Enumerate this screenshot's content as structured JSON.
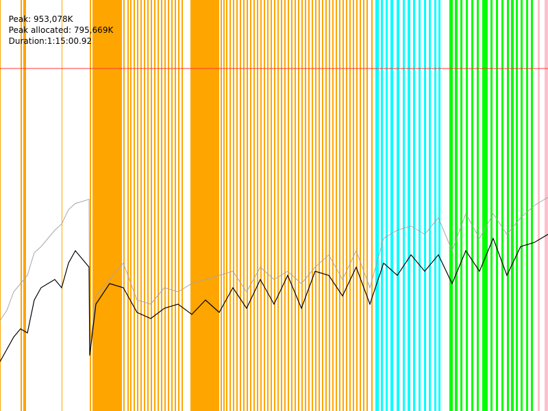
{
  "header": {
    "peak": "Peak: 953,078K",
    "peak_allocated": "Peak allocated: 795,669K",
    "duration": "Duration:1:15:00.92"
  },
  "chart_data": {
    "type": "line",
    "title": "",
    "xlabel": "",
    "ylabel": "",
    "colors": {
      "peak_line": "#ff3333",
      "total_memory": "#a6a6a6",
      "allocated_memory": "#000000",
      "phase_orange": "#ffa500",
      "phase_cyan": "#00ffff",
      "phase_green": "#00ff00",
      "phase_pink": "#ffc0cb"
    },
    "ylim": [
      0,
      1000
    ],
    "peak_reference_level": 953078,
    "phases": [
      {
        "color": "orange",
        "ranges": [
          [
            0,
            1
          ],
          [
            30,
            32
          ],
          [
            34,
            38
          ],
          [
            90,
            91
          ],
          [
            131,
            133
          ],
          [
            135,
            178
          ],
          [
            180,
            182
          ],
          [
            186,
            188
          ],
          [
            190,
            192
          ],
          [
            195,
            197
          ],
          [
            200,
            202
          ],
          [
            205,
            207
          ],
          [
            210,
            212
          ],
          [
            215,
            217
          ],
          [
            220,
            222
          ],
          [
            225,
            227
          ],
          [
            230,
            232
          ],
          [
            235,
            237
          ],
          [
            240,
            242
          ],
          [
            245,
            247
          ],
          [
            250,
            252
          ],
          [
            255,
            257
          ],
          [
            260,
            262
          ],
          [
            265,
            267
          ],
          [
            278,
            320
          ],
          [
            322,
            324
          ],
          [
            326,
            328
          ],
          [
            330,
            332
          ],
          [
            335,
            337
          ],
          [
            340,
            342
          ],
          [
            345,
            347
          ],
          [
            350,
            352
          ],
          [
            355,
            357
          ],
          [
            360,
            362
          ],
          [
            365,
            367
          ],
          [
            370,
            372
          ],
          [
            375,
            377
          ],
          [
            380,
            382
          ],
          [
            385,
            387
          ],
          [
            390,
            392
          ],
          [
            395,
            397
          ],
          [
            400,
            402
          ],
          [
            405,
            407
          ],
          [
            410,
            412
          ],
          [
            415,
            417
          ],
          [
            420,
            422
          ],
          [
            425,
            427
          ],
          [
            430,
            432
          ],
          [
            435,
            437
          ],
          [
            440,
            442
          ],
          [
            445,
            447
          ],
          [
            450,
            452
          ],
          [
            455,
            457
          ],
          [
            460,
            462
          ],
          [
            465,
            467
          ],
          [
            470,
            472
          ],
          [
            475,
            477
          ],
          [
            480,
            482
          ],
          [
            485,
            487
          ],
          [
            490,
            492
          ],
          [
            495,
            497
          ],
          [
            500,
            502
          ],
          [
            505,
            507
          ],
          [
            510,
            512
          ],
          [
            515,
            517
          ],
          [
            520,
            522
          ],
          [
            525,
            527
          ],
          [
            530,
            532
          ],
          [
            535,
            537
          ],
          [
            542,
            544
          ]
        ]
      },
      {
        "color": "cyan",
        "ranges": [
          [
            548,
            553
          ],
          [
            556,
            559
          ],
          [
            563,
            566
          ],
          [
            570,
            574
          ],
          [
            579,
            583
          ],
          [
            588,
            591
          ],
          [
            595,
            599
          ],
          [
            603,
            606
          ],
          [
            611,
            614
          ],
          [
            619,
            622
          ],
          [
            626,
            629
          ],
          [
            634,
            637
          ],
          [
            640,
            643
          ]
        ]
      },
      {
        "color": "green",
        "ranges": [
          [
            656,
            661
          ],
          [
            664,
            668
          ],
          [
            672,
            675
          ],
          [
            680,
            683
          ],
          [
            688,
            691
          ],
          [
            696,
            699
          ],
          [
            704,
            712
          ],
          [
            716,
            719
          ],
          [
            724,
            727
          ],
          [
            732,
            735
          ],
          [
            740,
            743
          ],
          [
            746,
            750
          ],
          [
            753,
            756
          ],
          [
            760,
            763
          ],
          [
            768,
            771
          ],
          [
            775,
            778
          ]
        ]
      },
      {
        "color": "pink",
        "ranges": [
          [
            785,
            788
          ],
          [
            795,
            800
          ]
        ]
      }
    ],
    "series": [
      {
        "key": "total_memory",
        "x": [
          0,
          10,
          20,
          30,
          40,
          50,
          60,
          70,
          80,
          90,
          100,
          110,
          120,
          130,
          131,
          140,
          160,
          180,
          200,
          220,
          240,
          260,
          280,
          300,
          320,
          340,
          360,
          380,
          400,
          420,
          440,
          460,
          480,
          500,
          520,
          540,
          560,
          580,
          600,
          620,
          640,
          660,
          680,
          700,
          720,
          740,
          760,
          780,
          800
        ],
        "values": [
          220,
          245,
          290,
          310,
          330,
          385,
          400,
          420,
          440,
          455,
          490,
          505,
          510,
          515,
          150,
          280,
          320,
          360,
          270,
          260,
          300,
          290,
          310,
          320,
          330,
          340,
          290,
          350,
          320,
          340,
          310,
          350,
          380,
          320,
          390,
          300,
          420,
          440,
          450,
          430,
          470,
          390,
          480,
          420,
          480,
          430,
          470,
          500,
          520
        ]
      },
      {
        "key": "allocated_memory",
        "x": [
          0,
          10,
          20,
          30,
          40,
          50,
          60,
          70,
          80,
          90,
          100,
          110,
          120,
          130,
          131,
          140,
          160,
          180,
          200,
          220,
          240,
          260,
          280,
          300,
          320,
          340,
          360,
          380,
          400,
          420,
          440,
          460,
          480,
          500,
          520,
          540,
          560,
          580,
          600,
          620,
          640,
          660,
          680,
          700,
          720,
          740,
          760,
          780,
          800
        ],
        "values": [
          120,
          150,
          180,
          200,
          190,
          270,
          300,
          310,
          320,
          300,
          360,
          390,
          370,
          350,
          135,
          260,
          310,
          300,
          240,
          225,
          250,
          260,
          235,
          270,
          240,
          300,
          250,
          320,
          260,
          330,
          250,
          340,
          330,
          280,
          350,
          260,
          360,
          330,
          380,
          340,
          380,
          310,
          390,
          340,
          420,
          330,
          400,
          410,
          430
        ]
      }
    ]
  }
}
